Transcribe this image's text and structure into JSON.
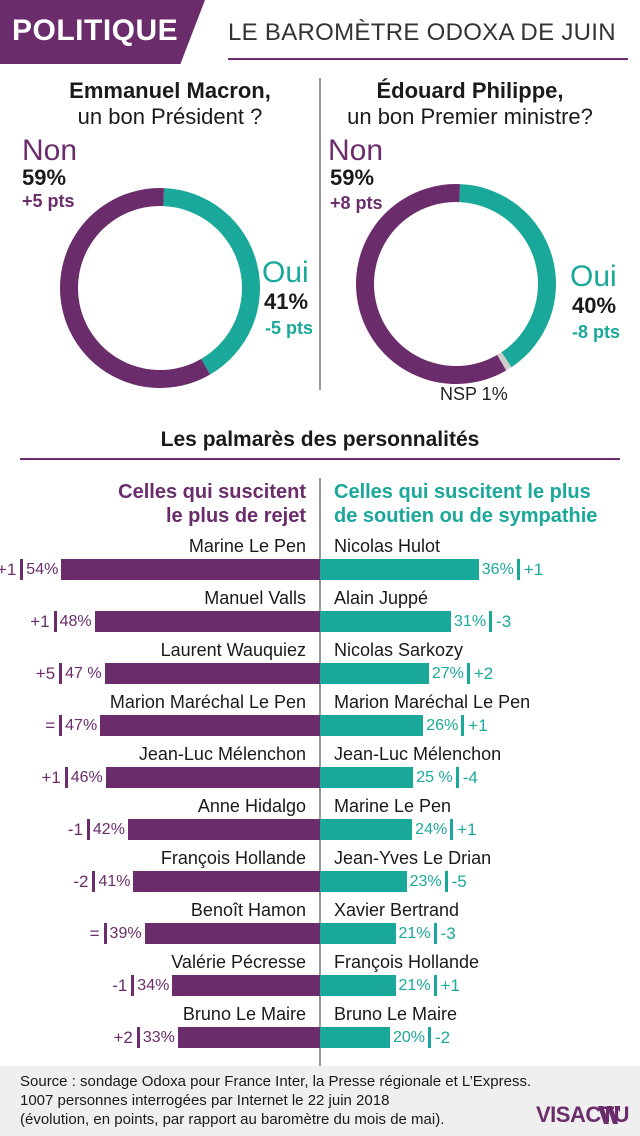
{
  "header": {
    "tag": "POLITIQUE",
    "title": "LE BAROMÈTRE ODOXA DE JUIN"
  },
  "colors": {
    "purple": "#6b2c6b",
    "teal": "#1aa89a",
    "grey": "#cccccc"
  },
  "chart_data": [
    {
      "type": "pie",
      "title": "Emmanuel Macron,",
      "subtitle": "un bon Président ?",
      "slices": [
        {
          "label": "Non",
          "value": 59,
          "change": "+5 pts"
        },
        {
          "label": "Oui",
          "value": 41,
          "change": "-5 pts"
        }
      ]
    },
    {
      "type": "pie",
      "title": "Édouard Philippe,",
      "subtitle": "un bon Premier ministre?",
      "slices": [
        {
          "label": "Non",
          "value": 59,
          "change": "+8 pts"
        },
        {
          "label": "Oui",
          "value": 40,
          "change": "-8 pts"
        },
        {
          "label": "NSP 1%",
          "value": 1
        }
      ]
    },
    {
      "type": "bar",
      "title": "Les palmarès des personnalités",
      "series": [
        {
          "name": "Celles qui suscitent le plus de rejet",
          "values": [
            {
              "name": "Marine Le Pen",
              "pct": 54,
              "label": "54%",
              "change": "+1"
            },
            {
              "name": "Manuel Valls",
              "pct": 48,
              "label": "48%",
              "change": "+1"
            },
            {
              "name": "Laurent Wauquiez",
              "pct": 47,
              "label": "47 %",
              "change": "+5"
            },
            {
              "name": "Marion Maréchal Le Pen",
              "pct": 47,
              "label": "47%",
              "change": "="
            },
            {
              "name": "Jean-Luc Mélenchon",
              "pct": 46,
              "label": "46%",
              "change": "+1"
            },
            {
              "name": "Anne Hidalgo",
              "pct": 42,
              "label": "42%",
              "change": "-1"
            },
            {
              "name": "François Hollande",
              "pct": 41,
              "label": "41%",
              "change": "-2"
            },
            {
              "name": "Benoît Hamon",
              "pct": 39,
              "label": "39%",
              "change": "="
            },
            {
              "name": "Valérie Pécresse",
              "pct": 34,
              "label": "34%",
              "change": "-1"
            },
            {
              "name": "Bruno Le Maire",
              "pct": 33,
              "label": "33%",
              "change": "+2"
            }
          ]
        },
        {
          "name": "Celles qui suscitent le plus de soutien ou de sympathie",
          "values": [
            {
              "name": "Nicolas Hulot",
              "pct": 36,
              "label": "36%",
              "change": "+1"
            },
            {
              "name": "Alain Juppé",
              "pct": 31,
              "label": "31%",
              "change": "-3"
            },
            {
              "name": "Nicolas Sarkozy",
              "pct": 27,
              "label": "27%",
              "change": "+2"
            },
            {
              "name": "Marion Maréchal Le Pen",
              "pct": 26,
              "label": "26%",
              "change": "+1"
            },
            {
              "name": "Jean-Luc Mélenchon",
              "pct": 25,
              "label": "25 %",
              "change": "-4"
            },
            {
              "name": "Marine Le Pen",
              "pct": 24,
              "label": "24%",
              "change": "+1"
            },
            {
              "name": "Jean-Yves Le Drian",
              "pct": 23,
              "label": "23%",
              "change": "-5"
            },
            {
              "name": "Xavier Bertrand",
              "pct": 21,
              "label": "21%",
              "change": "-3"
            },
            {
              "name": "François Hollande",
              "pct": 21,
              "label": "21%",
              "change": "+1"
            },
            {
              "name": "Bruno Le Maire",
              "pct": 20,
              "label": "20%",
              "change": "-2"
            }
          ]
        }
      ]
    }
  ],
  "labels": {
    "left_head_1": "Celles qui suscitent",
    "left_head_2": "le plus de rejet",
    "right_head_1": "Celles qui suscitent le plus",
    "right_head_2": "de soutien ou de sympathie"
  },
  "footer": {
    "source_1": "Source : sondage Odoxa pour France Inter, la Presse régionale et L’Express.",
    "source_2": "1007 personnes interrogées par Internet le 22 juin 2018",
    "source_3": "(évolution, en points, par rapport au baromètre du mois de mai).",
    "logo": "VISACTU"
  }
}
